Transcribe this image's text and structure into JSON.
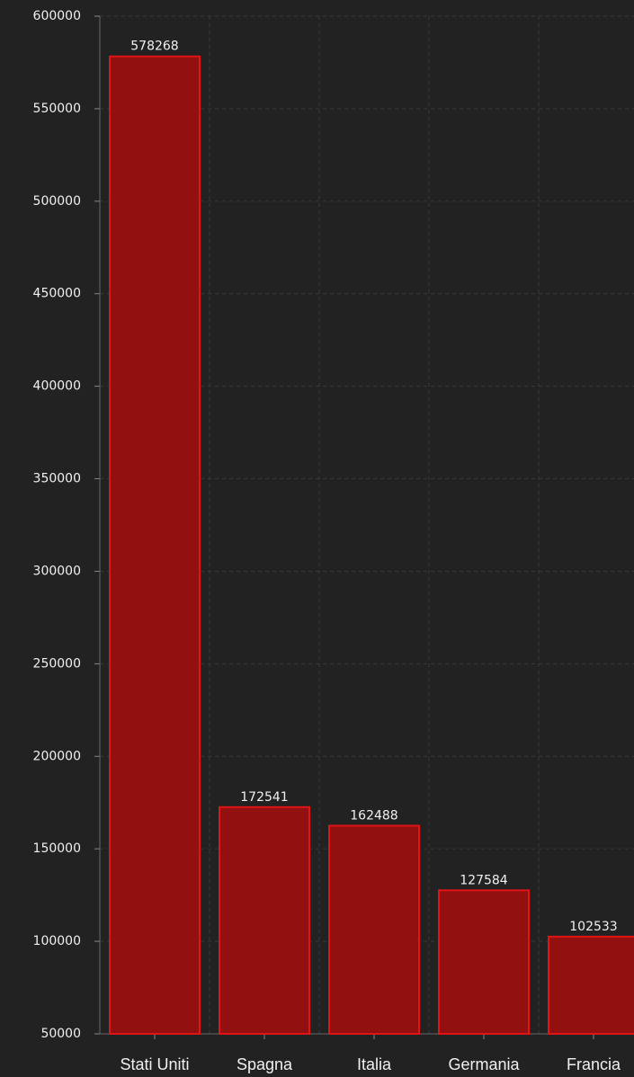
{
  "chart_data": {
    "type": "bar",
    "categories": [
      "Stati Uniti",
      "Spagna",
      "Italia",
      "Germania",
      "Francia"
    ],
    "values": [
      578268,
      172541,
      162488,
      127584,
      102533
    ],
    "color": "#921010",
    "edge_color": "#e01414",
    "ylim": [
      50000,
      600000
    ],
    "yticks": [
      50000,
      100000,
      150000,
      200000,
      250000,
      300000,
      350000,
      400000,
      450000,
      500000,
      550000,
      600000
    ],
    "grid": true,
    "show_value_labels": true
  }
}
